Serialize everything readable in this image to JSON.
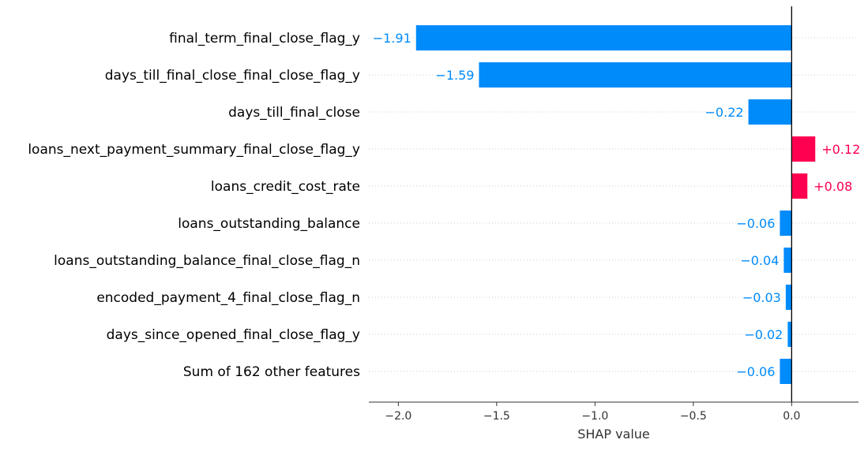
{
  "chart_data": {
    "type": "bar",
    "orientation": "horizontal",
    "categories": [
      "final_term_final_close_flag_y",
      "days_till_final_close_final_close_flag_y",
      "days_till_final_close",
      "loans_next_payment_summary_final_close_flag_y",
      "loans_credit_cost_rate",
      "loans_outstanding_balance",
      "loans_outstanding_balance_final_close_flag_n",
      "encoded_payment_4_final_close_flag_n",
      "days_since_opened_final_close_flag_y",
      "Sum of 162 other features"
    ],
    "values": [
      -1.91,
      -1.59,
      -0.22,
      0.12,
      0.08,
      -0.06,
      -0.04,
      -0.03,
      -0.02,
      -0.06
    ],
    "value_labels": [
      "−1.91",
      "−1.59",
      "−0.22",
      "+0.12",
      "+0.08",
      "−0.06",
      "−0.04",
      "−0.03",
      "−0.02",
      "−0.06"
    ],
    "xlabel": "SHAP value",
    "ylabel": "",
    "title": "",
    "xlim": [
      -2.15,
      0.34
    ],
    "xticks": [
      -2.0,
      -1.5,
      -1.0,
      -0.5,
      0.0
    ],
    "xtick_labels": [
      "−2.0",
      "−1.5",
      "−1.0",
      "−0.5",
      "0.0"
    ],
    "grid": "dotted horizontal row guides",
    "legend": "none",
    "colors": {
      "negative": "#008bfb",
      "positive": "#ff0051",
      "zero_line": "#000000",
      "guide": "#cccccc",
      "axis": "#333333"
    }
  }
}
